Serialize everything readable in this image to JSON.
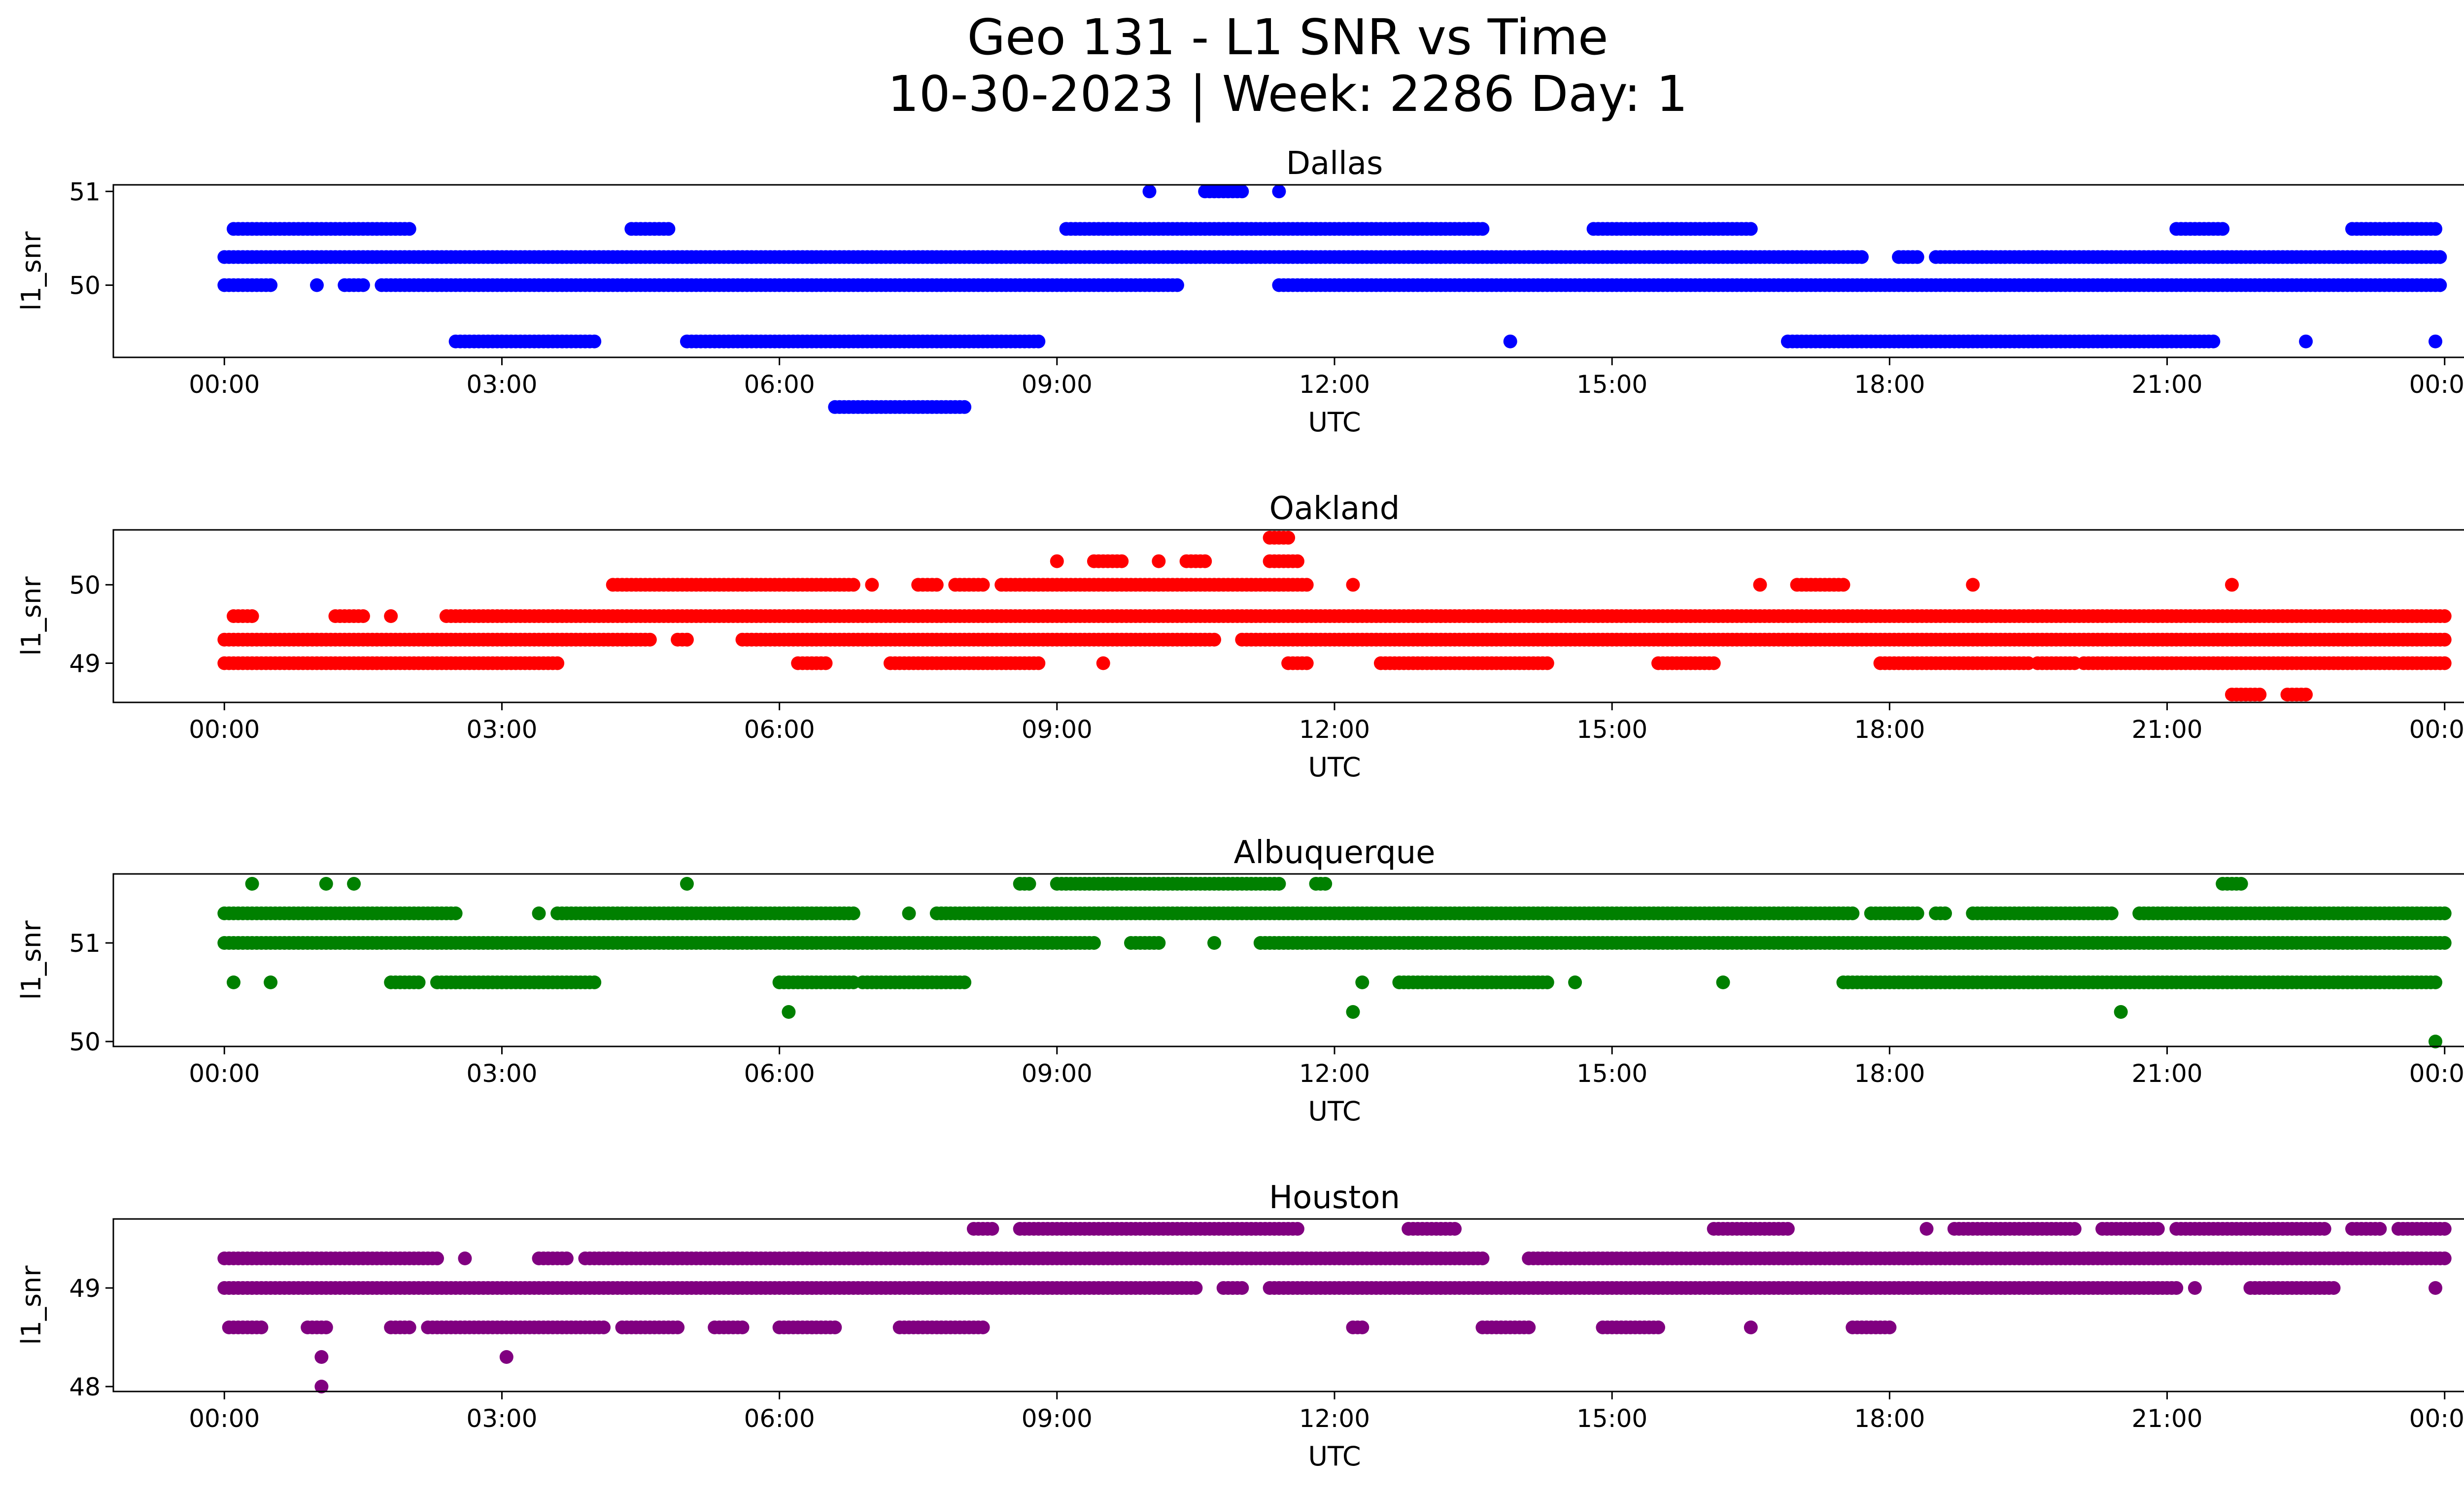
{
  "figure": {
    "title_line1": "Geo 131 - L1 SNR vs Time",
    "title_line2": "10-30-2023 | Week: 2286 Day: 1"
  },
  "chart_data": [
    {
      "type": "scatter",
      "title": "Dallas",
      "xlabel": "UTC",
      "ylabel": "l1_snr",
      "color": "#0000ff",
      "xticks": [
        "00:00",
        "03:00",
        "06:00",
        "09:00",
        "12:00",
        "15:00",
        "18:00",
        "21:00",
        "00:00"
      ],
      "yticks": [
        50,
        51
      ],
      "xlim_hours": [
        -1.2,
        25.2
      ],
      "ylim": [
        49.23,
        51.07
      ],
      "levels": [
        {
          "y": 48.7,
          "segments": [
            [
              6.6,
              8.0
            ]
          ]
        },
        {
          "y": 49.4,
          "segments": [
            [
              2.5,
              4.0
            ],
            [
              5.0,
              8.8
            ],
            [
              13.9,
              13.9
            ],
            [
              16.9,
              21.5
            ],
            [
              22.5,
              22.5
            ],
            [
              23.9,
              23.9
            ]
          ]
        },
        {
          "y": 50.0,
          "segments": [
            [
              0.0,
              0.5
            ],
            [
              1.0,
              1.0
            ],
            [
              1.3,
              1.5
            ],
            [
              1.7,
              10.3
            ],
            [
              11.4,
              23.95
            ]
          ]
        },
        {
          "y": 50.3,
          "segments": [
            [
              0.0,
              10.5
            ],
            [
              10.5,
              17.7
            ],
            [
              18.1,
              18.3
            ],
            [
              18.5,
              23.95
            ]
          ]
        },
        {
          "y": 50.6,
          "segments": [
            [
              0.1,
              2.0
            ],
            [
              4.4,
              4.8
            ],
            [
              9.1,
              11.8
            ],
            [
              11.8,
              13.6
            ],
            [
              14.8,
              16.5
            ],
            [
              21.1,
              21.6
            ],
            [
              23.0,
              23.9
            ]
          ]
        },
        {
          "y": 51.0,
          "segments": [
            [
              10.0,
              10.0
            ],
            [
              10.6,
              11.0
            ],
            [
              11.4,
              11.4
            ]
          ]
        }
      ]
    },
    {
      "type": "scatter",
      "title": "Oakland",
      "xlabel": "UTC",
      "ylabel": "l1_snr",
      "color": "#ff0000",
      "xticks": [
        "00:00",
        "03:00",
        "06:00",
        "09:00",
        "12:00",
        "15:00",
        "18:00",
        "21:00",
        "00:00"
      ],
      "yticks": [
        49,
        50
      ],
      "ylim": [
        48.5,
        50.7
      ],
      "levels": [
        {
          "y": 48.6,
          "segments": [
            [
              21.7,
              22.0
            ],
            [
              22.3,
              22.5
            ]
          ]
        },
        {
          "y": 49.0,
          "segments": [
            [
              0.0,
              3.6
            ],
            [
              6.2,
              6.5
            ],
            [
              7.2,
              8.8
            ],
            [
              9.5,
              9.5
            ],
            [
              11.5,
              11.7
            ],
            [
              12.5,
              14.3
            ],
            [
              15.5,
              16.1
            ],
            [
              17.9,
              19.5
            ],
            [
              19.6,
              20.0
            ],
            [
              20.1,
              24.0
            ]
          ]
        },
        {
          "y": 49.3,
          "segments": [
            [
              0.0,
              4.6
            ],
            [
              4.9,
              5.0
            ],
            [
              5.6,
              10.7
            ],
            [
              11.0,
              24.0
            ]
          ]
        },
        {
          "y": 49.6,
          "segments": [
            [
              0.1,
              0.3
            ],
            [
              1.2,
              1.5
            ],
            [
              1.8,
              1.8
            ],
            [
              2.4,
              24.0
            ]
          ]
        },
        {
          "y": 50.0,
          "segments": [
            [
              4.2,
              6.8
            ],
            [
              7.0,
              7.0
            ],
            [
              7.5,
              7.7
            ],
            [
              7.9,
              8.2
            ],
            [
              8.4,
              11.7
            ],
            [
              12.2,
              12.2
            ],
            [
              16.6,
              16.6
            ],
            [
              17.0,
              17.5
            ],
            [
              18.9,
              18.9
            ],
            [
              21.7,
              21.7
            ]
          ]
        },
        {
          "y": 50.3,
          "segments": [
            [
              9.0,
              9.0
            ],
            [
              9.4,
              9.7
            ],
            [
              10.1,
              10.1
            ],
            [
              10.4,
              10.6
            ],
            [
              11.3,
              11.6
            ]
          ]
        },
        {
          "y": 50.6,
          "segments": [
            [
              11.3,
              11.5
            ]
          ]
        }
      ]
    },
    {
      "type": "scatter",
      "title": "Albuquerque",
      "xlabel": "UTC",
      "ylabel": "l1_snr",
      "color": "#008000",
      "xticks": [
        "00:00",
        "03:00",
        "06:00",
        "09:00",
        "12:00",
        "15:00",
        "18:00",
        "21:00",
        "00:00"
      ],
      "yticks": [
        50,
        51
      ],
      "ylim": [
        49.95,
        51.7
      ],
      "levels": [
        {
          "y": 50.0,
          "segments": [
            [
              23.9,
              23.9
            ]
          ]
        },
        {
          "y": 50.3,
          "segments": [
            [
              6.1,
              6.1
            ],
            [
              12.2,
              12.2
            ],
            [
              20.5,
              20.5
            ]
          ]
        },
        {
          "y": 50.6,
          "segments": [
            [
              0.1,
              0.1
            ],
            [
              0.5,
              0.5
            ],
            [
              1.8,
              2.1
            ],
            [
              2.3,
              4.0
            ],
            [
              6.0,
              6.8
            ],
            [
              6.9,
              8.0
            ],
            [
              12.3,
              12.3
            ],
            [
              12.7,
              14.3
            ],
            [
              14.6,
              14.6
            ],
            [
              16.2,
              16.2
            ],
            [
              17.5,
              23.9
            ]
          ]
        },
        {
          "y": 51.0,
          "segments": [
            [
              0.0,
              9.4
            ],
            [
              9.8,
              10.1
            ],
            [
              10.7,
              10.7
            ],
            [
              11.2,
              24.0
            ]
          ]
        },
        {
          "y": 51.3,
          "segments": [
            [
              0.0,
              2.5
            ],
            [
              3.4,
              3.4
            ],
            [
              3.6,
              6.8
            ],
            [
              7.4,
              7.4
            ],
            [
              7.7,
              17.6
            ],
            [
              17.8,
              18.3
            ],
            [
              18.5,
              18.6
            ],
            [
              18.9,
              20.4
            ],
            [
              20.7,
              24.0
            ]
          ]
        },
        {
          "y": 51.6,
          "segments": [
            [
              0.3,
              0.3
            ],
            [
              1.1,
              1.1
            ],
            [
              1.4,
              1.4
            ],
            [
              5.0,
              5.0
            ],
            [
              8.6,
              8.7
            ],
            [
              9.0,
              11.4
            ],
            [
              11.8,
              11.9
            ],
            [
              21.6,
              21.8
            ]
          ]
        }
      ]
    },
    {
      "type": "scatter",
      "title": "Houston",
      "xlabel": "UTC",
      "ylabel": "l1_snr",
      "color": "#800080",
      "xticks": [
        "00:00",
        "03:00",
        "06:00",
        "09:00",
        "12:00",
        "15:00",
        "18:00",
        "21:00",
        "00:00"
      ],
      "yticks": [
        48,
        49
      ],
      "ylim": [
        47.95,
        49.7
      ],
      "levels": [
        {
          "y": 48.0,
          "segments": [
            [
              1.05,
              1.05
            ]
          ]
        },
        {
          "y": 48.3,
          "segments": [
            [
              1.05,
              1.05
            ],
            [
              3.05,
              3.05
            ]
          ]
        },
        {
          "y": 48.6,
          "segments": [
            [
              0.05,
              0.4
            ],
            [
              0.9,
              1.1
            ],
            [
              1.8,
              2.0
            ],
            [
              2.2,
              4.1
            ],
            [
              4.3,
              4.9
            ],
            [
              5.3,
              5.6
            ],
            [
              6.0,
              6.6
            ],
            [
              7.3,
              8.2
            ],
            [
              12.2,
              12.3
            ],
            [
              13.6,
              14.1
            ],
            [
              14.9,
              15.5
            ],
            [
              16.5,
              16.5
            ],
            [
              17.6,
              18.0
            ]
          ]
        },
        {
          "y": 49.0,
          "segments": [
            [
              0.0,
              10.5
            ],
            [
              10.8,
              11.0
            ],
            [
              11.3,
              21.1
            ],
            [
              21.3,
              21.3
            ],
            [
              21.9,
              22.8
            ],
            [
              23.9,
              23.9
            ]
          ]
        },
        {
          "y": 49.3,
          "segments": [
            [
              0.0,
              2.3
            ],
            [
              2.6,
              2.6
            ],
            [
              3.4,
              3.7
            ],
            [
              3.9,
              13.6
            ],
            [
              14.1,
              24.0
            ]
          ]
        },
        {
          "y": 49.6,
          "segments": [
            [
              8.1,
              8.3
            ],
            [
              8.6,
              11.6
            ],
            [
              12.8,
              13.3
            ],
            [
              16.1,
              16.9
            ],
            [
              18.4,
              18.4
            ],
            [
              18.7,
              20.0
            ],
            [
              20.3,
              20.9
            ],
            [
              21.1,
              22.7
            ],
            [
              23.0,
              23.3
            ],
            [
              23.5,
              24.0
            ]
          ]
        }
      ]
    }
  ]
}
